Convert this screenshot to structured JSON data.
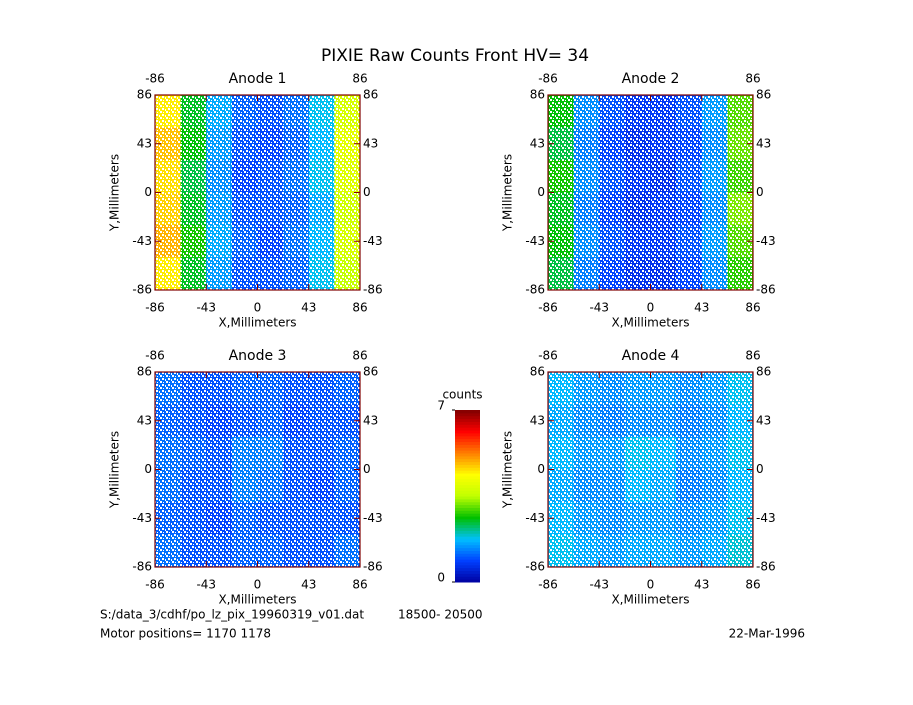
{
  "title": "PIXIE Raw Counts Front HV= 34",
  "chart_data": [
    {
      "type": "heatmap",
      "title": "Anode 1",
      "xlabel": "X,Millimeters",
      "ylabel": "Y,Millimeters",
      "xlim": [
        -86,
        86
      ],
      "ylim": [
        -86,
        86
      ],
      "xticks": [
        -86,
        -43,
        0,
        43,
        86
      ],
      "yticks": [
        -86,
        -43,
        0,
        43,
        86
      ],
      "z": [
        [
          4.5,
          2.5,
          1.6,
          1.1,
          1.0,
          1.2,
          1.8,
          3.8
        ],
        [
          4.8,
          2.6,
          1.5,
          1.0,
          0.9,
          1.1,
          1.7,
          4.0
        ],
        [
          4.6,
          2.4,
          1.4,
          0.9,
          1.0,
          1.2,
          1.8,
          3.9
        ],
        [
          4.7,
          2.5,
          1.5,
          1.0,
          1.0,
          1.1,
          1.6,
          3.7
        ],
        [
          4.9,
          2.7,
          1.6,
          1.1,
          0.9,
          1.2,
          1.7,
          3.8
        ],
        [
          4.5,
          2.5,
          1.5,
          1.0,
          1.0,
          1.1,
          1.8,
          3.6
        ]
      ]
    },
    {
      "type": "heatmap",
      "title": "Anode 2",
      "xlabel": "X,Millimeters",
      "ylabel": "Y,Millimeters",
      "xlim": [
        -86,
        86
      ],
      "ylim": [
        -86,
        86
      ],
      "xticks": [
        -86,
        -43,
        0,
        43,
        86
      ],
      "yticks": [
        -86,
        -43,
        0,
        43,
        86
      ],
      "z": [
        [
          2.6,
          1.4,
          1.0,
          0.8,
          0.8,
          1.0,
          1.5,
          3.0
        ],
        [
          2.4,
          1.3,
          0.9,
          0.7,
          0.8,
          0.9,
          1.4,
          3.1
        ],
        [
          2.7,
          1.4,
          1.0,
          0.8,
          0.7,
          1.0,
          1.5,
          2.9
        ],
        [
          2.5,
          1.3,
          0.9,
          0.7,
          0.8,
          0.9,
          1.4,
          3.2
        ],
        [
          2.6,
          1.4,
          1.0,
          0.8,
          0.8,
          1.0,
          1.5,
          3.0
        ],
        [
          2.4,
          1.3,
          0.9,
          0.7,
          0.7,
          0.9,
          1.4,
          2.8
        ]
      ]
    },
    {
      "type": "heatmap",
      "title": "Anode 3",
      "xlabel": "X,Millimeters",
      "ylabel": "Y,Millimeters",
      "xlim": [
        -86,
        86
      ],
      "ylim": [
        -86,
        86
      ],
      "xticks": [
        -86,
        -43,
        0,
        43,
        86
      ],
      "yticks": [
        -86,
        -43,
        0,
        43,
        86
      ],
      "z": [
        [
          1.2,
          1.0,
          1.0,
          1.1,
          1.1,
          1.0,
          1.0,
          1.1
        ],
        [
          1.1,
          1.0,
          0.9,
          1.0,
          1.1,
          0.9,
          1.0,
          1.0
        ],
        [
          1.2,
          1.1,
          1.0,
          1.3,
          1.3,
          1.0,
          1.0,
          1.1
        ],
        [
          1.2,
          1.0,
          1.0,
          1.3,
          1.2,
          1.0,
          0.9,
          1.1
        ],
        [
          1.1,
          1.0,
          0.9,
          1.1,
          1.0,
          1.0,
          1.0,
          1.0
        ],
        [
          1.2,
          1.0,
          1.0,
          1.1,
          1.1,
          1.0,
          1.0,
          1.2
        ]
      ]
    },
    {
      "type": "heatmap",
      "title": "Anode 4",
      "xlabel": "X,Millimeters",
      "ylabel": "Y,Millimeters",
      "xlim": [
        -86,
        86
      ],
      "ylim": [
        -86,
        86
      ],
      "xticks": [
        -86,
        -43,
        0,
        43,
        86
      ],
      "yticks": [
        -86,
        -43,
        0,
        43,
        86
      ],
      "z": [
        [
          1.7,
          1.5,
          1.4,
          1.5,
          1.5,
          1.4,
          1.5,
          1.8
        ],
        [
          1.6,
          1.4,
          1.3,
          1.4,
          1.4,
          1.3,
          1.4,
          1.7
        ],
        [
          1.7,
          1.5,
          1.5,
          1.8,
          1.7,
          1.4,
          1.5,
          1.8
        ],
        [
          1.6,
          1.4,
          1.4,
          1.7,
          1.6,
          1.3,
          1.4,
          1.7
        ],
        [
          1.7,
          1.5,
          1.4,
          1.5,
          1.5,
          1.4,
          1.5,
          1.8
        ],
        [
          1.8,
          1.6,
          1.5,
          1.6,
          1.6,
          1.5,
          1.6,
          1.9
        ]
      ]
    }
  ],
  "colorbar": {
    "label": "counts",
    "zlim": [
      0,
      7
    ],
    "zticks": [
      0,
      7
    ],
    "colors": [
      "#0000a0",
      "#0040ff",
      "#00c0ff",
      "#00c000",
      "#c0ff00",
      "#ffff00",
      "#ff8000",
      "#ff0000",
      "#800000"
    ]
  },
  "footer": {
    "file": "S:/data_3/cdhf/po_lz_pix_19960319_v01.dat",
    "range": "18500- 20500",
    "motor": "Motor positions= 1170 1178",
    "date": "22-Mar-1996"
  }
}
